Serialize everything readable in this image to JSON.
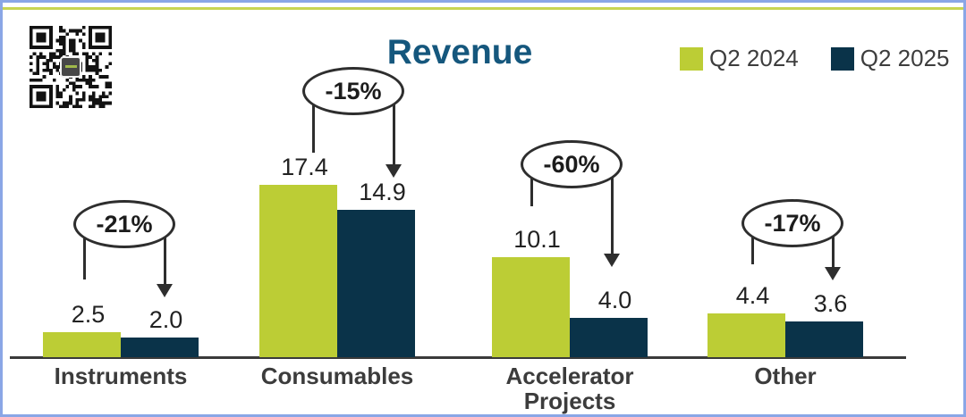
{
  "slide": {
    "background": "#FFFFFF",
    "border_color": "#8AA6E6",
    "top_accent_color": "#C8D552",
    "qr_icon": "qr-code"
  },
  "chart_data": {
    "type": "bar",
    "title": "Revenue",
    "title_color": "#15577D",
    "categories": [
      "Instruments",
      "Consumables",
      "Accelerator Projects",
      "Other"
    ],
    "series": [
      {
        "name": "Q2 2024",
        "color": "#BCCD35",
        "values": [
          2.5,
          17.4,
          10.1,
          4.4
        ]
      },
      {
        "name": "Q2 2025",
        "color": "#0A3349",
        "values": [
          2.0,
          14.9,
          4.0,
          3.6
        ]
      }
    ],
    "annotations": [
      {
        "category": "Instruments",
        "label": "-21%"
      },
      {
        "category": "Consumables",
        "label": "-15%"
      },
      {
        "category": "Accelerator Projects",
        "label": "-60%"
      },
      {
        "category": "Other",
        "label": "-17%"
      }
    ],
    "value_labels": true,
    "value_decimals": 1,
    "legend_position": "top-right",
    "grid": false,
    "ylim": [
      0,
      18
    ],
    "axis": "baseline-only"
  }
}
